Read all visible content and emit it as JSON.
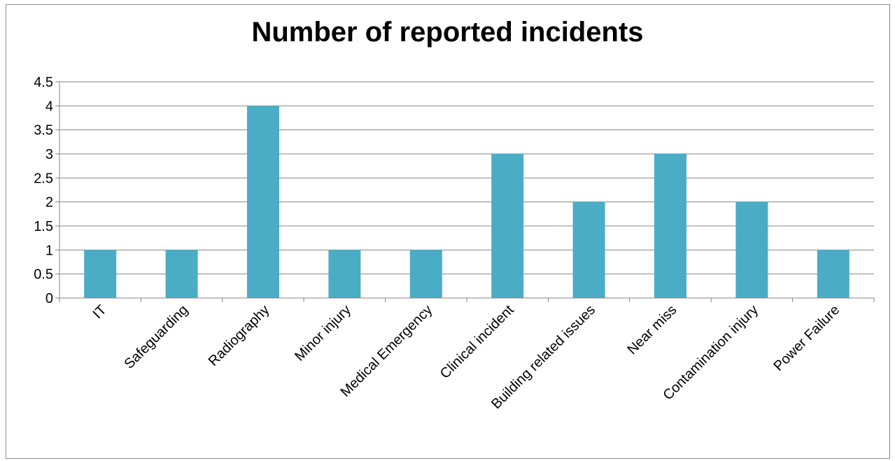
{
  "chart_data": {
    "type": "bar",
    "title": "Number of reported incidents",
    "xlabel": "",
    "ylabel": "",
    "categories": [
      "IT",
      "Safeguarding",
      "Radiography",
      "Minor injury",
      "Medical Emergency",
      "Clinical incident",
      "Building related issues",
      "Near miss",
      "Contamination injury",
      "Power Failure"
    ],
    "values": [
      1,
      1,
      4,
      1,
      1,
      3,
      2,
      3,
      2,
      1
    ],
    "ylim": [
      0,
      4.5
    ],
    "yticks": [
      "0",
      "0.5",
      "1",
      "1.5",
      "2",
      "2.5",
      "3",
      "3.5",
      "4",
      "4.5"
    ],
    "grid": true,
    "legend": "none",
    "bar_color": "#4BACC6",
    "grid_color": "#868686"
  }
}
